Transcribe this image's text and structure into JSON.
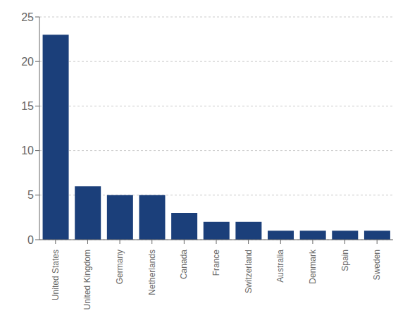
{
  "chart_data": {
    "type": "bar",
    "categories": [
      "United States",
      "United Kingdom",
      "Germany",
      "Netherlands",
      "Canada",
      "France",
      "Switzerland",
      "Australia",
      "Denmark",
      "Spain",
      "Sweden"
    ],
    "values": [
      23,
      6,
      5,
      5,
      3,
      2,
      2,
      1,
      1,
      1,
      1
    ],
    "color": "#1b3f7a",
    "ylim": [
      0,
      25
    ],
    "yticks": [
      0,
      5,
      10,
      15,
      20,
      25
    ],
    "grid": true
  }
}
